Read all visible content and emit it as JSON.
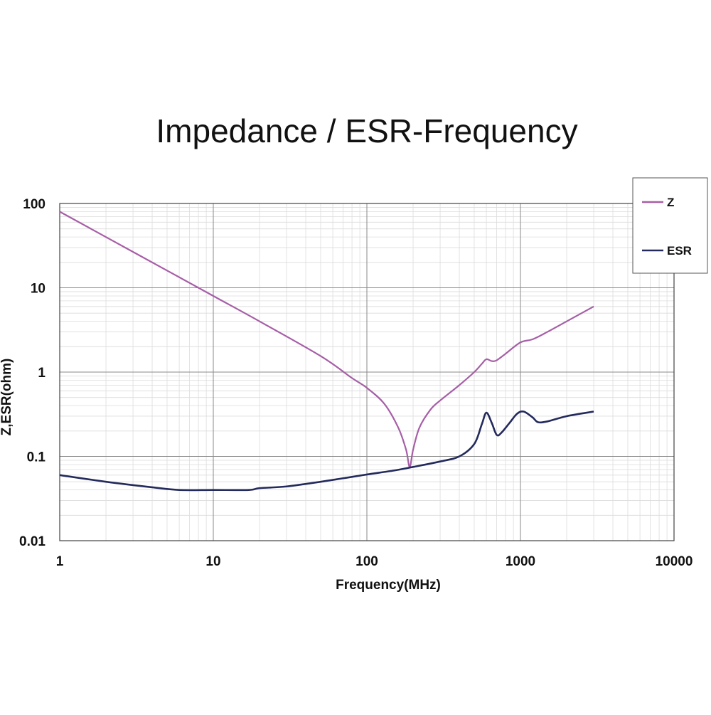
{
  "chart_data": {
    "type": "line",
    "title": "Impedance / ESR-Frequency",
    "xlabel": "Frequency(MHz)",
    "ylabel": "Z,ESR(ohm)",
    "x_scale": "log",
    "y_scale": "log",
    "xlim": [
      1,
      10000
    ],
    "ylim": [
      0.01,
      100
    ],
    "x_ticks": [
      "1",
      "10",
      "100",
      "1000",
      "10000"
    ],
    "y_ticks": [
      "0.01",
      "0.1",
      "1",
      "10",
      "100"
    ],
    "grid": true,
    "legend_position": "top-right",
    "series": [
      {
        "name": "Z",
        "color": "#a65fa6",
        "points": [
          [
            1,
            80
          ],
          [
            2,
            40
          ],
          [
            5,
            16
          ],
          [
            10,
            8
          ],
          [
            20,
            4
          ],
          [
            50,
            1.55
          ],
          [
            80,
            0.85
          ],
          [
            100,
            0.65
          ],
          [
            130,
            0.42
          ],
          [
            160,
            0.22
          ],
          [
            180,
            0.12
          ],
          [
            190,
            0.075
          ],
          [
            200,
            0.12
          ],
          [
            220,
            0.22
          ],
          [
            260,
            0.36
          ],
          [
            300,
            0.46
          ],
          [
            400,
            0.7
          ],
          [
            500,
            1.0
          ],
          [
            560,
            1.25
          ],
          [
            600,
            1.42
          ],
          [
            650,
            1.35
          ],
          [
            700,
            1.38
          ],
          [
            800,
            1.65
          ],
          [
            1000,
            2.25
          ],
          [
            1200,
            2.45
          ],
          [
            1500,
            3.0
          ],
          [
            2000,
            4.0
          ],
          [
            3000,
            6.0
          ]
        ]
      },
      {
        "name": "ESR",
        "color": "#232a5c",
        "points": [
          [
            1,
            0.06
          ],
          [
            2,
            0.05
          ],
          [
            4,
            0.043
          ],
          [
            6,
            0.04
          ],
          [
            10,
            0.04
          ],
          [
            17,
            0.04
          ],
          [
            20,
            0.042
          ],
          [
            30,
            0.044
          ],
          [
            50,
            0.05
          ],
          [
            70,
            0.055
          ],
          [
            100,
            0.061
          ],
          [
            150,
            0.068
          ],
          [
            200,
            0.075
          ],
          [
            300,
            0.087
          ],
          [
            400,
            0.1
          ],
          [
            500,
            0.14
          ],
          [
            560,
            0.24
          ],
          [
            600,
            0.33
          ],
          [
            650,
            0.25
          ],
          [
            700,
            0.18
          ],
          [
            750,
            0.19
          ],
          [
            850,
            0.25
          ],
          [
            950,
            0.32
          ],
          [
            1050,
            0.34
          ],
          [
            1200,
            0.29
          ],
          [
            1300,
            0.255
          ],
          [
            1500,
            0.26
          ],
          [
            2000,
            0.3
          ],
          [
            3000,
            0.34
          ]
        ]
      }
    ]
  }
}
